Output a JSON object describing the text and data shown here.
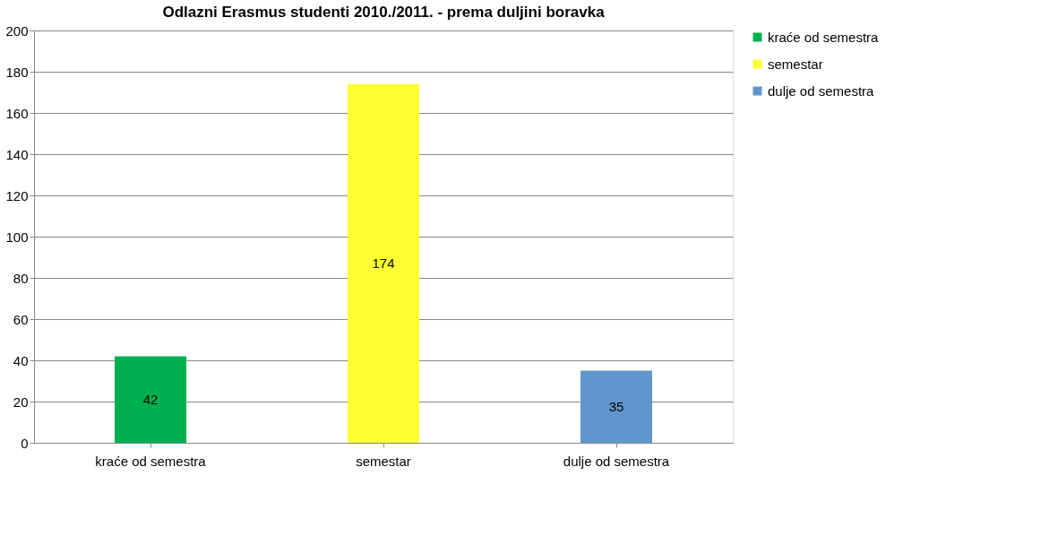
{
  "chart_data": {
    "type": "bar",
    "title": "Odlazni Erasmus studenti 2010./2011. - prema duljini boravka",
    "categories": [
      "kraće od semestra",
      "semestar",
      "dulje od semestra"
    ],
    "series": [
      {
        "name": "kraće od semestra",
        "color": "#00b050",
        "values": [
          42,
          null,
          null
        ]
      },
      {
        "name": "semestar",
        "color": "#ffff33",
        "values": [
          null,
          174,
          null
        ]
      },
      {
        "name": "dulje od semestra",
        "color": "#6196cc",
        "values": [
          null,
          null,
          35
        ]
      }
    ],
    "ylim": [
      0,
      200
    ],
    "yticks": [
      0,
      20,
      40,
      60,
      80,
      100,
      120,
      140,
      160,
      180,
      200
    ],
    "grid": "y",
    "legend": "right",
    "data_labels": true
  }
}
